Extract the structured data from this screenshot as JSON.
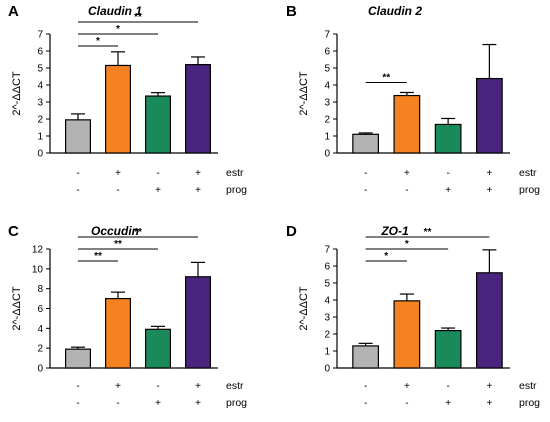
{
  "chart_data": [
    {
      "type": "bar",
      "panel": "A",
      "title": "Claudin 1",
      "ylabel": "2^-ΔΔCT",
      "ylim": [
        0,
        7
      ],
      "yticks": [
        "0",
        "1",
        "2",
        "3",
        "4",
        "5",
        "6",
        "7"
      ],
      "categories": [
        "control",
        "estr",
        "prog",
        "estr+prog"
      ],
      "estr_row": [
        "-",
        "+",
        "-",
        "+"
      ],
      "prog_row": [
        "-",
        "-",
        "+",
        "+"
      ],
      "row_labels": [
        "estr",
        "prog"
      ],
      "values": [
        1.95,
        5.15,
        3.35,
        5.2
      ],
      "errors": [
        0.35,
        0.8,
        0.2,
        0.45
      ],
      "colors": [
        "#b3b3b3",
        "#f58220",
        "#1a8a5a",
        "#4b2480"
      ],
      "significance": [
        {
          "from": 0,
          "to": 1,
          "label": "*"
        },
        {
          "from": 0,
          "to": 2,
          "label": "*"
        },
        {
          "from": 0,
          "to": 3,
          "label": "**"
        }
      ]
    },
    {
      "type": "bar",
      "panel": "B",
      "title": "Claudin 2",
      "ylabel": "2^-ΔΔCT",
      "ylim": [
        0,
        7
      ],
      "yticks": [
        "0",
        "1",
        "2",
        "3",
        "4",
        "5",
        "6",
        "7"
      ],
      "categories": [
        "control",
        "estr",
        "prog",
        "estr+prog"
      ],
      "estr_row": [
        "-",
        "+",
        "-",
        "+"
      ],
      "prog_row": [
        "-",
        "-",
        "+",
        "+"
      ],
      "row_labels": [
        "estr",
        "prog"
      ],
      "values": [
        1.1,
        3.38,
        1.68,
        4.38
      ],
      "errors": [
        0.08,
        0.18,
        0.35,
        2.0
      ],
      "colors": [
        "#b3b3b3",
        "#f58220",
        "#1a8a5a",
        "#4b2480"
      ],
      "significance": [
        {
          "from": 0,
          "to": 1,
          "label": "**"
        }
      ]
    },
    {
      "type": "bar",
      "panel": "C",
      "title": "Occudin",
      "ylabel": "2^-ΔΔCT",
      "ylim": [
        0,
        12
      ],
      "yticks": [
        "0",
        "2",
        "4",
        "6",
        "8",
        "10",
        "12"
      ],
      "categories": [
        "control",
        "estr",
        "prog",
        "estr+prog"
      ],
      "estr_row": [
        "-",
        "+",
        "-",
        "+"
      ],
      "prog_row": [
        "-",
        "-",
        "+",
        "+"
      ],
      "row_labels": [
        "estr",
        "prog"
      ],
      "values": [
        1.9,
        7.0,
        3.9,
        9.2
      ],
      "errors": [
        0.2,
        0.65,
        0.3,
        1.45
      ],
      "colors": [
        "#b3b3b3",
        "#f58220",
        "#1a8a5a",
        "#4b2480"
      ],
      "significance": [
        {
          "from": 0,
          "to": 1,
          "label": "**"
        },
        {
          "from": 0,
          "to": 2,
          "label": "**"
        },
        {
          "from": 0,
          "to": 3,
          "label": "**"
        }
      ]
    },
    {
      "type": "bar",
      "panel": "D",
      "title": "ZO-1",
      "ylabel": "2^-ΔΔCT",
      "ylim": [
        0,
        7
      ],
      "yticks": [
        "0",
        "1",
        "2",
        "3",
        "4",
        "5",
        "6",
        "7"
      ],
      "categories": [
        "control",
        "estr",
        "prog",
        "estr+prog"
      ],
      "estr_row": [
        "-",
        "+",
        "-",
        "+"
      ],
      "prog_row": [
        "-",
        "-",
        "+",
        "+"
      ],
      "row_labels": [
        "estr",
        "prog"
      ],
      "values": [
        1.3,
        3.95,
        2.2,
        5.6
      ],
      "errors": [
        0.15,
        0.4,
        0.15,
        1.35
      ],
      "colors": [
        "#b3b3b3",
        "#f58220",
        "#1a8a5a",
        "#4b2480"
      ],
      "significance": [
        {
          "from": 0,
          "to": 1,
          "label": "*"
        },
        {
          "from": 0,
          "to": 2,
          "label": "*"
        },
        {
          "from": 0,
          "to": 3,
          "label": "**"
        }
      ]
    }
  ]
}
